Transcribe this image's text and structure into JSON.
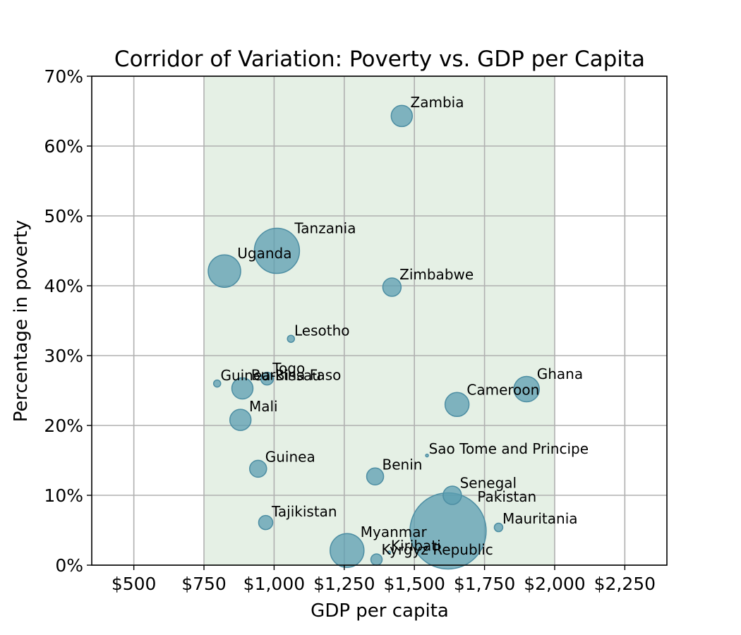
{
  "chart_data": {
    "type": "scatter",
    "title": "Corridor of Variation: Poverty vs. GDP per Capita",
    "xlabel": "GDP per capita",
    "ylabel": "Percentage in poverty",
    "xlim": [
      350,
      2400
    ],
    "ylim": [
      0,
      70
    ],
    "x_ticks": [
      500,
      750,
      1000,
      1250,
      1500,
      1750,
      2000,
      2250
    ],
    "x_tick_labels": [
      "$500",
      "$750",
      "$1,000",
      "$1,250",
      "$1,500",
      "$1,750",
      "$2,000",
      "$2,250"
    ],
    "y_ticks": [
      0,
      10,
      20,
      30,
      40,
      50,
      60,
      70
    ],
    "y_tick_labels": [
      "0%",
      "10%",
      "20%",
      "30%",
      "40%",
      "50%",
      "60%",
      "70%"
    ],
    "grid": true,
    "shaded_band": {
      "x_start": 750,
      "x_end": 2000,
      "color": "#e5f0e5"
    },
    "marker_color": "#5b9db0",
    "points": [
      {
        "label": "Zambia",
        "x": 1455,
        "y": 64.3,
        "size": 15
      },
      {
        "label": "Tanzania",
        "x": 1010,
        "y": 45.0,
        "size": 32
      },
      {
        "label": "Uganda",
        "x": 823,
        "y": 42.1,
        "size": 23
      },
      {
        "label": "Zimbabwe",
        "x": 1420,
        "y": 39.8,
        "size": 13
      },
      {
        "label": "Lesotho",
        "x": 1060,
        "y": 32.4,
        "size": 5
      },
      {
        "label": "Guinea-Bissau",
        "x": 797,
        "y": 26.0,
        "size": 5
      },
      {
        "label": "Togo",
        "x": 975,
        "y": 26.7,
        "size": 9
      },
      {
        "label": "Burkina Faso",
        "x": 887,
        "y": 25.3,
        "size": 15
      },
      {
        "label": "Ghana",
        "x": 1900,
        "y": 25.2,
        "size": 18
      },
      {
        "label": "Cameroon",
        "x": 1652,
        "y": 23.0,
        "size": 17
      },
      {
        "label": "Mali",
        "x": 880,
        "y": 20.8,
        "size": 15
      },
      {
        "label": "Sao Tome and Principe",
        "x": 1545,
        "y": 15.7,
        "size": 2
      },
      {
        "label": "Guinea",
        "x": 943,
        "y": 13.8,
        "size": 12
      },
      {
        "label": "Benin",
        "x": 1360,
        "y": 12.7,
        "size": 12
      },
      {
        "label": "Senegal",
        "x": 1635,
        "y": 10.0,
        "size": 13
      },
      {
        "label": "Tajikistan",
        "x": 970,
        "y": 6.1,
        "size": 10
      },
      {
        "label": "Pakistan",
        "x": 1620,
        "y": 4.9,
        "size": 54
      },
      {
        "label": "Mauritania",
        "x": 1800,
        "y": 5.4,
        "size": 6
      },
      {
        "label": "Myanmar",
        "x": 1260,
        "y": 2.1,
        "size": 24
      },
      {
        "label": "Kiribati",
        "x": 1410,
        "y": 1.8,
        "size": 2
      },
      {
        "label": "Kyrgyz Republic",
        "x": 1365,
        "y": 0.8,
        "size": 8
      }
    ]
  }
}
